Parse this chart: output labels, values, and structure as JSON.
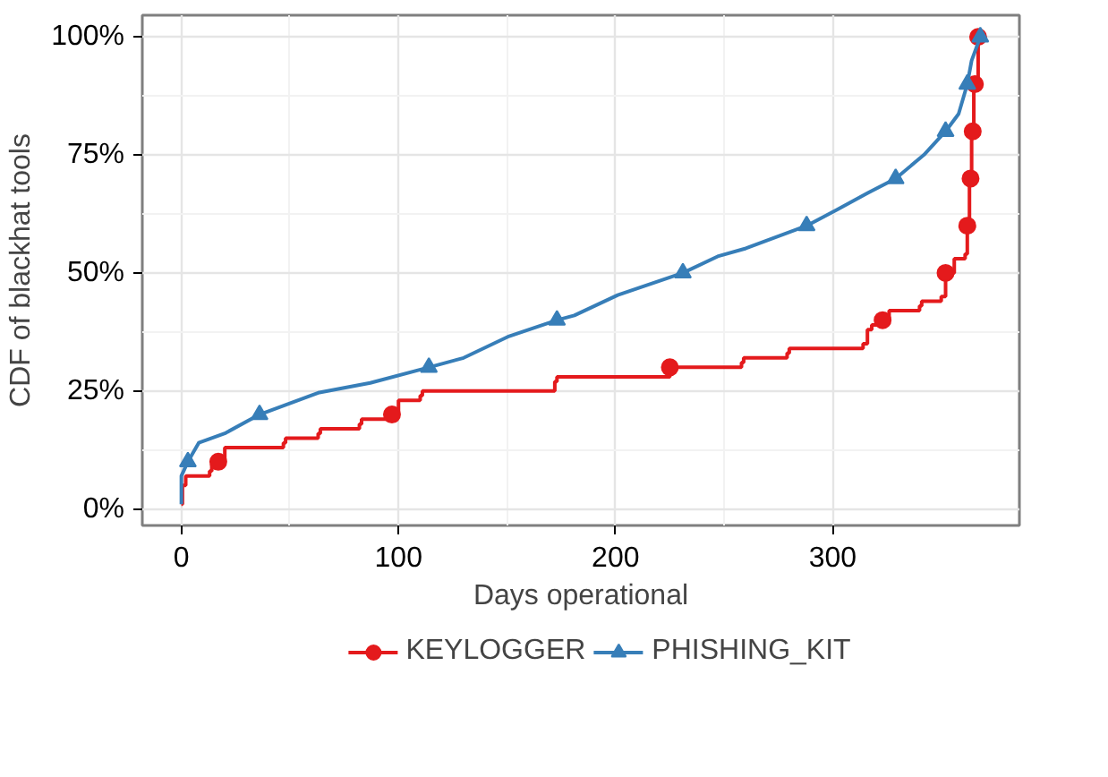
{
  "chart_data": {
    "type": "line",
    "xlabel": "Days operational",
    "ylabel": "CDF of blackhat tools",
    "xlim": [
      -18,
      386
    ],
    "ylim": [
      -3.5,
      104.6
    ],
    "xticks": [
      0,
      100,
      200,
      300
    ],
    "yticks": [
      {
        "value": 0,
        "label": "0%"
      },
      {
        "value": 25,
        "label": "25%"
      },
      {
        "value": 50,
        "label": "50%"
      },
      {
        "value": 75,
        "label": "75%"
      },
      {
        "value": 100,
        "label": "100%"
      }
    ],
    "grid": true,
    "legend": "bottom",
    "line_style": "solid",
    "series": [
      {
        "name": "KEYLOGGER",
        "type": "step",
        "color": "#e41a1c",
        "marker": "none",
        "x": [
          0,
          0.5,
          2,
          13,
          14,
          17,
          20,
          47,
          48,
          63,
          64,
          82,
          83,
          97,
          100,
          110,
          111,
          172,
          173,
          225,
          258,
          259,
          279,
          280,
          314,
          316,
          318,
          323,
          326,
          340,
          341,
          350,
          352,
          356,
          361,
          362,
          363,
          364,
          365,
          367
        ],
        "values": [
          1,
          5,
          7,
          8,
          9.5,
          10,
          13,
          14,
          15,
          16,
          17,
          18,
          19,
          20,
          23,
          24,
          25,
          27,
          28,
          30,
          31,
          32,
          33,
          34,
          35,
          38,
          39,
          40,
          42,
          43,
          44,
          45,
          50,
          53,
          54,
          60,
          70,
          80,
          90,
          100
        ]
      },
      {
        "type": "scatter",
        "color": "#e41a1c",
        "marker": "circle",
        "x": [
          17,
          97,
          225,
          323,
          352,
          362,
          363.5,
          364.5,
          365.5,
          367
        ],
        "values": [
          10,
          20,
          30,
          40,
          50,
          60,
          70,
          80,
          90,
          100
        ]
      },
      {
        "name": "PHISHING_KIT",
        "color": "#377eb8",
        "marker": "none",
        "x": [
          0,
          0,
          3,
          8,
          20,
          36,
          63,
          87,
          114,
          130,
          151,
          173,
          181,
          201,
          231,
          247,
          260,
          288,
          302,
          316,
          329,
          342,
          352,
          358,
          362,
          364,
          368
        ],
        "values": [
          1,
          7,
          10,
          14,
          16,
          20,
          24.6,
          26.7,
          30,
          32,
          36.6,
          40,
          41,
          45.3,
          50,
          53.5,
          55.2,
          60,
          63.4,
          66.9,
          70,
          75,
          80,
          83.7,
          90,
          95,
          100
        ]
      },
      {
        "type": "scatter",
        "color": "#377eb8",
        "marker": "triangle",
        "x": [
          3,
          36,
          114,
          173,
          231,
          288,
          329,
          352,
          362,
          368
        ],
        "values": [
          10,
          20,
          30,
          40,
          50,
          60,
          70,
          80,
          90,
          100
        ]
      }
    ]
  }
}
